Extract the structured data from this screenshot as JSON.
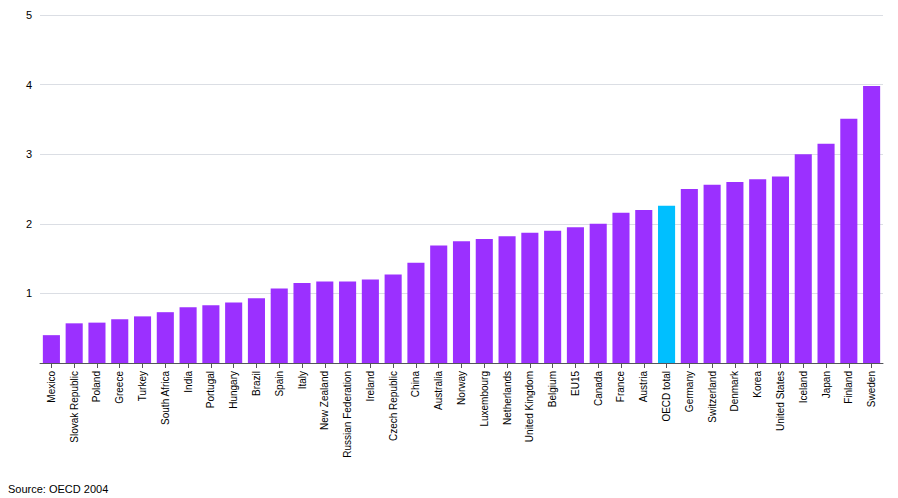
{
  "chart_data": {
    "type": "bar",
    "categories": [
      "Mexico",
      "Slovak Republic",
      "Poland",
      "Greece",
      "Turkey",
      "South Africa",
      "India",
      "Portugal",
      "Hungary",
      "Brazil",
      "Spain",
      "Italy",
      "New Zealand",
      "Russian Federation",
      "Ireland",
      "Czech Republic",
      "China",
      "Australia",
      "Norway",
      "Luxembourg",
      "Netherlands",
      "United Kingdom",
      "Belgium",
      "EU15",
      "Canada",
      "France",
      "Austria",
      "OECD total",
      "Germany",
      "Switzerland",
      "Denmark",
      "Korea",
      "United States",
      "Iceland",
      "Japan",
      "Finland",
      "Sweden"
    ],
    "values": [
      0.4,
      0.57,
      0.58,
      0.63,
      0.67,
      0.73,
      0.8,
      0.83,
      0.87,
      0.93,
      1.07,
      1.15,
      1.17,
      1.17,
      1.2,
      1.27,
      1.44,
      1.69,
      1.75,
      1.78,
      1.82,
      1.87,
      1.9,
      1.95,
      2.0,
      2.16,
      2.2,
      2.26,
      2.5,
      2.56,
      2.6,
      2.64,
      2.68,
      3.0,
      3.15,
      3.51,
      3.98
    ],
    "colors": [
      "#9B30FF",
      "#9B30FF",
      "#9B30FF",
      "#9B30FF",
      "#9B30FF",
      "#9B30FF",
      "#9B30FF",
      "#9B30FF",
      "#9B30FF",
      "#9B30FF",
      "#9B30FF",
      "#9B30FF",
      "#9B30FF",
      "#9B30FF",
      "#9B30FF",
      "#9B30FF",
      "#9B30FF",
      "#9B30FF",
      "#9B30FF",
      "#9B30FF",
      "#9B30FF",
      "#9B30FF",
      "#9B30FF",
      "#9B30FF",
      "#9B30FF",
      "#9B30FF",
      "#9B30FF",
      "#00BFFF",
      "#9B30FF",
      "#9B30FF",
      "#9B30FF",
      "#9B30FF",
      "#9B30FF",
      "#9B30FF",
      "#9B30FF",
      "#9B30FF",
      "#9B30FF"
    ],
    "ylim": [
      0,
      5
    ],
    "yticks": [
      1,
      2,
      3,
      4,
      5
    ],
    "grid": true,
    "annotations": [
      "Source: OECD 2004"
    ]
  }
}
